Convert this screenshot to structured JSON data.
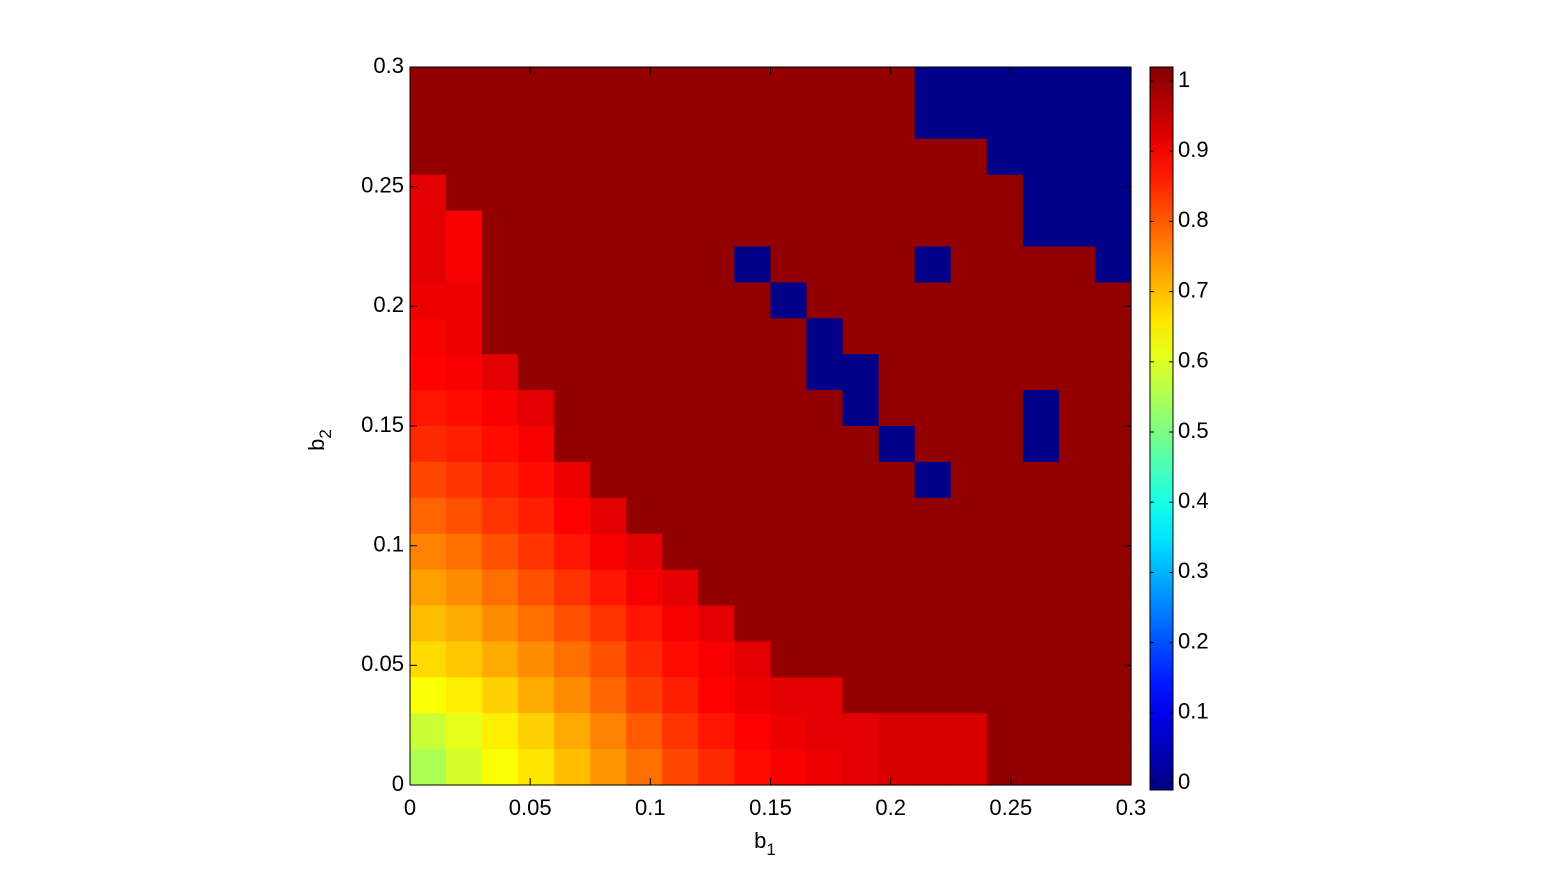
{
  "chart_data": {
    "type": "heatmap",
    "xlabel": {
      "text": "b",
      "subscript": "1"
    },
    "ylabel": {
      "text": "b",
      "subscript": "2"
    },
    "xlim": [
      0,
      0.3
    ],
    "ylim": [
      0,
      0.3
    ],
    "xticks": [
      0,
      0.05,
      0.1,
      0.15,
      0.2,
      0.25,
      0.3
    ],
    "yticks": [
      0,
      0.05,
      0.1,
      0.15,
      0.2,
      0.25,
      0.3
    ],
    "clim": [
      -0.01,
      1.02
    ],
    "cticks": [
      0,
      0.1,
      0.2,
      0.3,
      0.4,
      0.5,
      0.6,
      0.7,
      0.8,
      0.9,
      1
    ],
    "colormap": "jet",
    "x": [
      0.0075,
      0.0225,
      0.0375,
      0.0525,
      0.0675,
      0.0825,
      0.0975,
      0.1125,
      0.1275,
      0.1425,
      0.1575,
      0.1725,
      0.1875,
      0.2025,
      0.2175,
      0.2325,
      0.2475,
      0.2625,
      0.2775,
      0.2925
    ],
    "y": [
      0.2925,
      0.2775,
      0.2625,
      0.2475,
      0.2325,
      0.2175,
      0.2025,
      0.1875,
      0.1725,
      0.1575,
      0.1425,
      0.1275,
      0.1125,
      0.0975,
      0.0825,
      0.0675,
      0.0525,
      0.0375,
      0.0225,
      0.0075
    ],
    "z": [
      [
        1,
        1,
        1,
        1,
        1,
        1,
        1,
        1,
        1,
        1,
        1,
        1,
        1,
        1,
        0,
        0,
        0,
        0,
        0,
        0
      ],
      [
        1,
        1,
        1,
        1,
        1,
        1,
        1,
        1,
        1,
        1,
        1,
        1,
        1,
        1,
        0,
        0,
        0,
        0,
        0,
        0
      ],
      [
        1,
        1,
        1,
        1,
        1,
        1,
        1,
        1,
        1,
        1,
        1,
        1,
        1,
        1,
        1,
        1,
        0,
        0,
        0,
        0
      ],
      [
        0.92,
        1,
        1,
        1,
        1,
        1,
        1,
        1,
        1,
        1,
        1,
        1,
        1,
        1,
        1,
        1,
        1,
        0,
        0,
        0
      ],
      [
        0.92,
        0.9,
        1,
        1,
        1,
        1,
        1,
        1,
        1,
        1,
        1,
        1,
        1,
        1,
        1,
        1,
        1,
        0,
        0,
        0
      ],
      [
        0.92,
        0.9,
        1,
        1,
        1,
        1,
        1,
        1,
        1,
        0,
        1,
        1,
        1,
        1,
        0,
        1,
        1,
        1,
        1,
        0
      ],
      [
        0.91,
        0.91,
        1,
        1,
        1,
        1,
        1,
        1,
        1,
        1,
        0,
        1,
        1,
        1,
        1,
        1,
        1,
        1,
        1,
        1
      ],
      [
        0.9,
        0.91,
        1,
        1,
        1,
        1,
        1,
        1,
        1,
        1,
        1,
        0,
        1,
        1,
        1,
        1,
        1,
        1,
        1,
        1
      ],
      [
        0.89,
        0.9,
        0.92,
        1,
        1,
        1,
        1,
        1,
        1,
        1,
        1,
        0,
        0,
        1,
        1,
        1,
        1,
        1,
        1,
        1
      ],
      [
        0.87,
        0.88,
        0.9,
        0.92,
        1,
        1,
        1,
        1,
        1,
        1,
        1,
        1,
        0,
        1,
        1,
        1,
        1,
        0,
        1,
        1
      ],
      [
        0.85,
        0.86,
        0.88,
        0.9,
        1,
        1,
        1,
        1,
        1,
        1,
        1,
        1,
        1,
        0,
        1,
        1,
        1,
        0,
        1,
        1
      ],
      [
        0.82,
        0.84,
        0.86,
        0.88,
        0.91,
        1,
        1,
        1,
        1,
        1,
        1,
        1,
        1,
        1,
        0,
        1,
        1,
        1,
        1,
        1
      ],
      [
        0.79,
        0.81,
        0.84,
        0.86,
        0.89,
        0.92,
        1,
        1,
        1,
        1,
        1,
        1,
        1,
        1,
        1,
        1,
        1,
        1,
        1,
        1
      ],
      [
        0.76,
        0.78,
        0.81,
        0.84,
        0.87,
        0.9,
        0.92,
        1,
        1,
        1,
        1,
        1,
        1,
        1,
        1,
        1,
        1,
        1,
        1,
        1
      ],
      [
        0.73,
        0.75,
        0.78,
        0.81,
        0.84,
        0.87,
        0.9,
        0.92,
        1,
        1,
        1,
        1,
        1,
        1,
        1,
        1,
        1,
        1,
        1,
        1
      ],
      [
        0.7,
        0.72,
        0.75,
        0.78,
        0.81,
        0.84,
        0.87,
        0.9,
        0.92,
        1,
        1,
        1,
        1,
        1,
        1,
        1,
        1,
        1,
        1,
        1
      ],
      [
        0.67,
        0.69,
        0.72,
        0.75,
        0.78,
        0.81,
        0.85,
        0.88,
        0.9,
        0.92,
        1,
        1,
        1,
        1,
        1,
        1,
        1,
        1,
        1,
        1
      ],
      [
        0.63,
        0.65,
        0.68,
        0.72,
        0.75,
        0.79,
        0.83,
        0.86,
        0.89,
        0.91,
        0.92,
        0.92,
        1,
        1,
        1,
        1,
        1,
        1,
        1,
        1
      ],
      [
        0.58,
        0.61,
        0.65,
        0.68,
        0.72,
        0.76,
        0.8,
        0.84,
        0.87,
        0.89,
        0.91,
        0.92,
        0.92,
        0.93,
        0.93,
        0.93,
        1,
        1,
        1,
        1
      ],
      [
        0.55,
        0.59,
        0.63,
        0.66,
        0.7,
        0.74,
        0.78,
        0.82,
        0.85,
        0.88,
        0.9,
        0.91,
        0.92,
        0.93,
        0.93,
        0.93,
        1,
        1,
        1,
        1
      ]
    ]
  }
}
